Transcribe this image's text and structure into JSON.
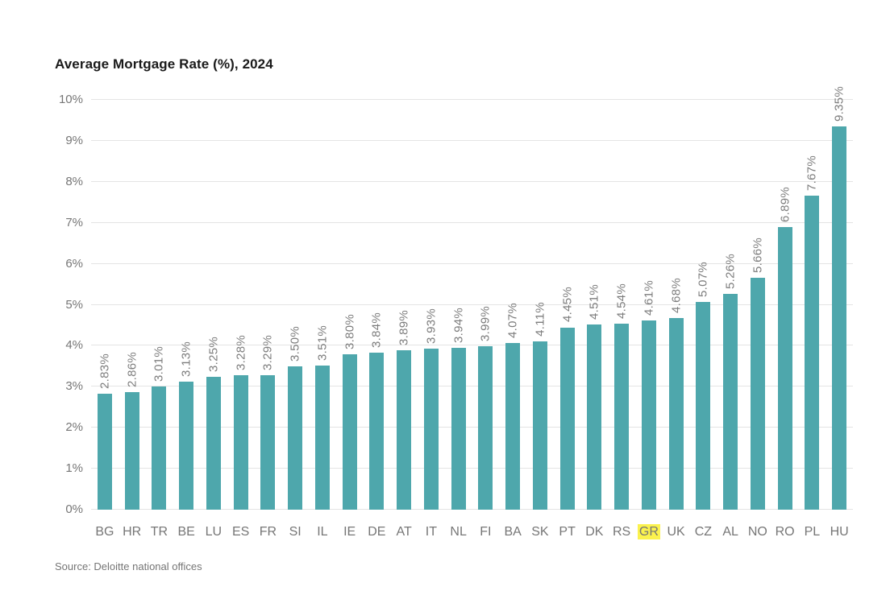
{
  "title": "Average Mortgage Rate (%), 2024",
  "source": "Source: Deloitte national offices",
  "colors": {
    "bar": "#4ea7ac",
    "highlight": "#fbf24e",
    "grid": "#e4e4e4",
    "axis_text": "#767676",
    "label_text": "#7d7d7d",
    "title_text": "#1a1a1a",
    "source_text": "#757575"
  },
  "chart_data": {
    "type": "bar",
    "title": "Average Mortgage Rate (%), 2024",
    "xlabel": "",
    "ylabel": "",
    "ylim": [
      0,
      10
    ],
    "grid": true,
    "legend": false,
    "yticks": [
      "0%",
      "1%",
      "2%",
      "3%",
      "4%",
      "5%",
      "6%",
      "7%",
      "8%",
      "9%",
      "10%"
    ],
    "categories": [
      "BG",
      "HR",
      "TR",
      "BE",
      "LU",
      "ES",
      "FR",
      "SI",
      "IL",
      "IE",
      "DE",
      "AT",
      "IT",
      "NL",
      "FI",
      "BA",
      "SK",
      "PT",
      "DK",
      "RS",
      "GR",
      "UK",
      "CZ",
      "AL",
      "NO",
      "RO",
      "PL",
      "HU"
    ],
    "values": [
      2.83,
      2.86,
      3.01,
      3.13,
      3.25,
      3.28,
      3.29,
      3.5,
      3.51,
      3.8,
      3.84,
      3.89,
      3.93,
      3.94,
      3.99,
      4.07,
      4.11,
      4.45,
      4.51,
      4.54,
      4.61,
      4.68,
      5.07,
      5.26,
      5.66,
      6.89,
      7.67,
      9.35
    ],
    "value_labels": [
      "2.83%",
      "2.86%",
      "3.01%",
      "3.13%",
      "3.25%",
      "3.28%",
      "3.29%",
      "3.50%",
      "3.51%",
      "3.80%",
      "3.84%",
      "3.89%",
      "3.93%",
      "3.94%",
      "3.99%",
      "4.07%",
      "4.11%",
      "4.45%",
      "4.51%",
      "4.54%",
      "4.61%",
      "4.68%",
      "5.07%",
      "5.26%",
      "5.66%",
      "6.89%",
      "7.67%",
      "9.35%"
    ],
    "highlighted_category": "GR",
    "source_note": "Source: Deloitte national offices"
  }
}
